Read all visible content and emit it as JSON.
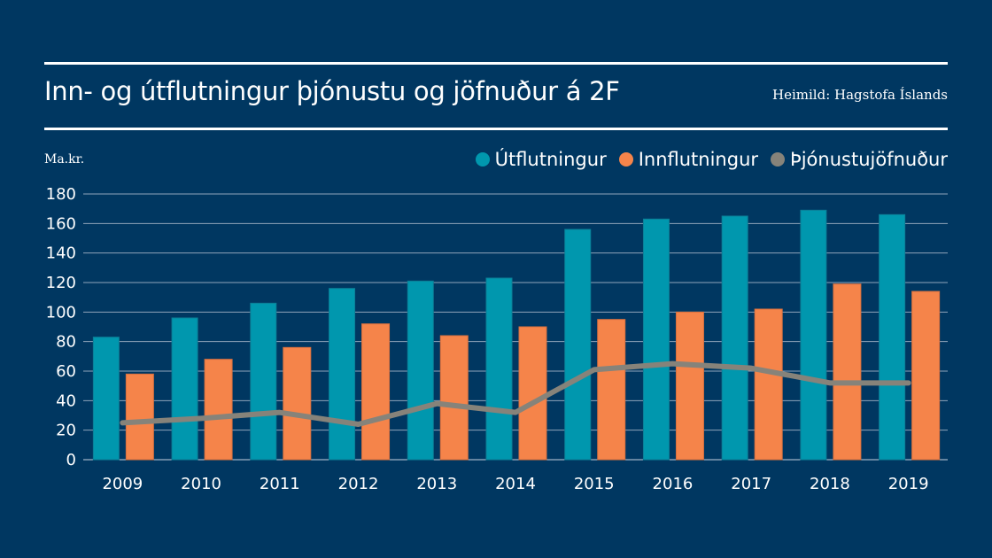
{
  "header": {
    "title": "Inn- og útflutningur þjónustu og jöfnuður á 2F",
    "source": "Heimild: Hagstofa Íslands"
  },
  "colors": {
    "background": "#003761",
    "export": "#0097AE",
    "import": "#F5844A",
    "balance": "#86837A",
    "grid": "#8FA4BA"
  },
  "chart_data": {
    "type": "bar",
    "title": "Inn- og útflutningur þjónustu og jöfnuður á 2F",
    "ylabel": "Ma.kr.",
    "xlabel": "",
    "ylim": [
      0,
      180
    ],
    "yticks": [
      0,
      20,
      40,
      60,
      80,
      100,
      120,
      140,
      160,
      180
    ],
    "grid": true,
    "legend_position": "top-right",
    "categories": [
      "2009",
      "2010",
      "2011",
      "2012",
      "2013",
      "2014",
      "2015",
      "2016",
      "2017",
      "2018",
      "2019"
    ],
    "series": [
      {
        "name": "Útflutningur",
        "kind": "bar",
        "color": "#0097AE",
        "values": [
          83,
          96,
          106,
          116,
          121,
          123,
          156,
          163,
          165,
          169,
          166
        ]
      },
      {
        "name": "Innflutningur",
        "kind": "bar",
        "color": "#F5844A",
        "values": [
          58,
          68,
          76,
          92,
          84,
          90,
          95,
          100,
          102,
          119,
          114
        ]
      },
      {
        "name": "Þjónustujöfnuður",
        "kind": "line",
        "color": "#86837A",
        "values": [
          25,
          28,
          32,
          24,
          38,
          32,
          61,
          65,
          62,
          52,
          52
        ]
      }
    ]
  }
}
